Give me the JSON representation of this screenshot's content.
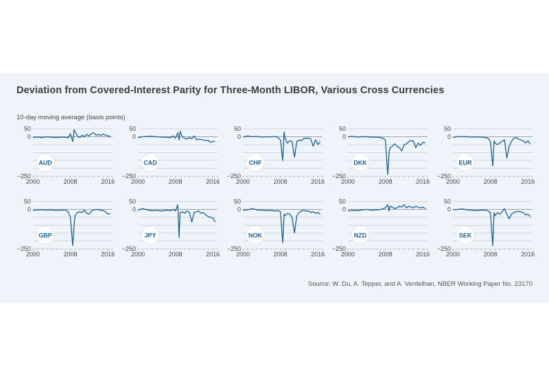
{
  "header": {
    "title": "Deviation from Covered-Interest Parity for Three-Month LIBOR, Various Cross Currencies",
    "ylabel": "10-day moving average (basis points)"
  },
  "footer": {
    "source": "Source: W. Du, A. Tepper, and A. Verdelhan, NBER Working Paper No. 23170"
  },
  "colors": {
    "background": "#eef4f9",
    "line": "#1a5e94",
    "grid": "#c9ccd0",
    "zero_line": "#9aa0a6",
    "badge_text": "#1d5f96"
  },
  "chart_data": {
    "type": "line",
    "title": "Deviation from Covered-Interest Parity for Three-Month LIBOR, Various Cross Currencies",
    "ylabel": "10-day moving average (basis points)",
    "xlabel": "",
    "xlim": [
      2000,
      2017
    ],
    "ylim": [
      -250,
      50
    ],
    "yticks": [
      50,
      0,
      -250
    ],
    "ygrid": [
      50,
      0,
      -50,
      -100,
      -150,
      -200,
      -250
    ],
    "xticks": [
      2000,
      2008,
      2016
    ],
    "grid": true,
    "layout": "2 rows x 5 columns of small multiples",
    "x": [
      2000,
      2001,
      2002,
      2003,
      2004,
      2005,
      2006,
      2007,
      2007.5,
      2008,
      2008.5,
      2008.8,
      2009,
      2009.5,
      2010,
      2010.5,
      2011,
      2011.5,
      2012,
      2012.5,
      2013,
      2013.5,
      2014,
      2014.5,
      2015,
      2015.5,
      2016,
      2016.5
    ],
    "series": [
      {
        "name": "AUD",
        "values": [
          -3,
          -2,
          -5,
          0,
          -3,
          -5,
          -2,
          -3,
          -8,
          20,
          -30,
          45,
          30,
          5,
          -5,
          10,
          0,
          15,
          5,
          20,
          25,
          10,
          15,
          8,
          18,
          10,
          5,
          3
        ]
      },
      {
        "name": "CAD",
        "values": [
          -5,
          0,
          2,
          3,
          0,
          -2,
          -3,
          -5,
          5,
          -10,
          25,
          -20,
          35,
          0,
          -10,
          -15,
          -5,
          -12,
          5,
          -20,
          -15,
          -18,
          -20,
          -25,
          -22,
          -35,
          -30,
          -30
        ]
      },
      {
        "name": "CHF",
        "values": [
          -3,
          5,
          0,
          2,
          -2,
          0,
          -1,
          2,
          -5,
          -20,
          -150,
          30,
          -10,
          -40,
          -25,
          -30,
          -130,
          -30,
          -20,
          -25,
          -10,
          -10,
          -8,
          -15,
          -60,
          -20,
          -50,
          -30
        ]
      },
      {
        "name": "DKK",
        "values": [
          0,
          2,
          -2,
          0,
          1,
          -3,
          -2,
          -5,
          -10,
          -20,
          -240,
          -100,
          -70,
          -60,
          -45,
          -60,
          -70,
          -90,
          -50,
          -45,
          -30,
          -25,
          -28,
          -70,
          -40,
          -55,
          -35,
          -40
        ]
      },
      {
        "name": "EUR",
        "values": [
          -5,
          2,
          0,
          1,
          -2,
          -1,
          -2,
          -5,
          -10,
          -30,
          -185,
          -25,
          -40,
          -50,
          -40,
          -30,
          -20,
          -135,
          -60,
          -30,
          -10,
          -5,
          -15,
          -20,
          -25,
          -40,
          -25,
          -45
        ]
      },
      {
        "name": "GBP",
        "values": [
          -5,
          -4,
          -2,
          -5,
          -3,
          -6,
          -4,
          -5,
          -15,
          -50,
          -230,
          -100,
          -40,
          -20,
          -15,
          -20,
          -5,
          -25,
          -30,
          -10,
          -3,
          0,
          -2,
          -5,
          -8,
          -15,
          -30,
          -25
        ]
      },
      {
        "name": "JPY",
        "values": [
          -5,
          5,
          -3,
          -8,
          -6,
          -10,
          -5,
          -8,
          0,
          -10,
          30,
          -180,
          -20,
          -15,
          -25,
          -10,
          -20,
          -80,
          -20,
          -15,
          -10,
          -25,
          -20,
          -35,
          -45,
          -50,
          -55,
          -80
        ]
      },
      {
        "name": "NOK",
        "values": [
          -5,
          -3,
          5,
          -3,
          -5,
          -8,
          -6,
          -10,
          -8,
          -15,
          -210,
          -30,
          -40,
          -25,
          -30,
          -50,
          -150,
          -40,
          -20,
          -10,
          -5,
          -12,
          -10,
          -20,
          -15,
          -25,
          -20,
          -30
        ]
      },
      {
        "name": "NZD",
        "values": [
          -10,
          -5,
          -8,
          -3,
          0,
          -5,
          -3,
          0,
          5,
          10,
          30,
          -10,
          20,
          15,
          5,
          10,
          20,
          15,
          30,
          10,
          20,
          15,
          10,
          20,
          15,
          10,
          15,
          5
        ]
      },
      {
        "name": "SEK",
        "values": [
          -3,
          0,
          3,
          -3,
          -5,
          -8,
          -5,
          -5,
          -10,
          -20,
          -230,
          -20,
          -40,
          -20,
          -30,
          -15,
          5,
          -30,
          -60,
          -30,
          -20,
          -15,
          -12,
          -15,
          -20,
          -35,
          -30,
          -45
        ]
      }
    ]
  }
}
